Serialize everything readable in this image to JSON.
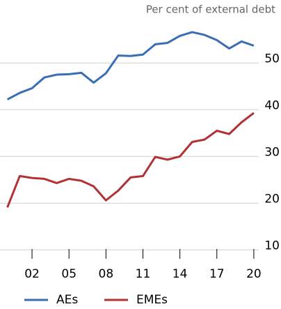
{
  "chart_data": {
    "type": "line",
    "subtitle": "Per cent of external debt",
    "x": [
      2000,
      2001,
      2002,
      2003,
      2004,
      2005,
      2006,
      2007,
      2008,
      2009,
      2010,
      2011,
      2012,
      2013,
      2014,
      2015,
      2016,
      2017,
      2018,
      2019,
      2020
    ],
    "series": [
      {
        "name": "AEs",
        "color": "#3a6db3",
        "values": [
          42.2,
          43.6,
          44.6,
          46.9,
          47.5,
          47.6,
          47.9,
          45.8,
          47.8,
          51.6,
          51.5,
          51.8,
          54.0,
          54.3,
          55.8,
          56.6,
          56.0,
          54.9,
          53.1,
          54.6,
          53.7
        ]
      },
      {
        "name": "EMEs",
        "color": "#b23234",
        "values": [
          19.1,
          25.8,
          25.4,
          25.2,
          24.3,
          25.2,
          24.8,
          23.6,
          20.6,
          22.7,
          25.5,
          25.8,
          29.9,
          29.3,
          30.0,
          33.1,
          33.6,
          35.5,
          34.8,
          37.3,
          39.3
        ]
      }
    ],
    "xlim": [
      1999.4,
      2020.4
    ],
    "xticks": [
      {
        "value": 2002,
        "label": "02"
      },
      {
        "value": 2005,
        "label": "05"
      },
      {
        "value": 2008,
        "label": "08"
      },
      {
        "value": 2011,
        "label": "11"
      },
      {
        "value": 2014,
        "label": "14"
      },
      {
        "value": 2017,
        "label": "17"
      },
      {
        "value": 2020,
        "label": "20"
      }
    ],
    "ylim": [
      7.5,
      59
    ],
    "yticks": [
      10,
      20,
      30,
      40,
      50
    ],
    "grid": true,
    "legend": "bottom"
  }
}
